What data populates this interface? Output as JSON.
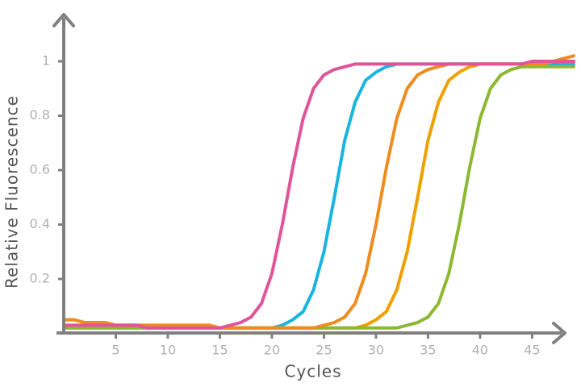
{
  "chart_data": {
    "type": "line",
    "xlabel": "Cycles",
    "ylabel": "Relative Fluorescence",
    "x": [
      0,
      1,
      2,
      3,
      4,
      5,
      6,
      7,
      8,
      9,
      10,
      11,
      12,
      13,
      14,
      15,
      16,
      17,
      18,
      19,
      20,
      21,
      22,
      23,
      24,
      25,
      26,
      27,
      28,
      29,
      30,
      31,
      32,
      33,
      34,
      35,
      36,
      37,
      38,
      39,
      40,
      41,
      42,
      43,
      44,
      45,
      46,
      47,
      48,
      49
    ],
    "xlim": [
      0,
      49
    ],
    "xticks": [
      5,
      10,
      15,
      20,
      25,
      30,
      35,
      40,
      45
    ],
    "ylim": [
      0,
      1.15
    ],
    "yticks": [
      0.2,
      0.4,
      0.6,
      0.8,
      1
    ],
    "grid": false,
    "series": [
      {
        "color": "#1ab4e0",
        "values": [
          0.02,
          0.02,
          0.02,
          0.02,
          0.02,
          0.02,
          0.02,
          0.02,
          0.02,
          0.02,
          0.02,
          0.02,
          0.02,
          0.02,
          0.02,
          0.02,
          0.02,
          0.02,
          0.02,
          0.02,
          0.02,
          0.03,
          0.05,
          0.08,
          0.16,
          0.3,
          0.5,
          0.71,
          0.85,
          0.93,
          0.96,
          0.98,
          0.99,
          0.99,
          0.99,
          0.99,
          0.99,
          0.99,
          0.99,
          0.99,
          0.99,
          0.99,
          0.99,
          0.99,
          0.99,
          0.99,
          0.99,
          0.99,
          0.99,
          0.99
        ]
      },
      {
        "color": "#f0a000",
        "values": [
          0.05,
          0.05,
          0.04,
          0.04,
          0.04,
          0.03,
          0.03,
          0.03,
          0.03,
          0.03,
          0.03,
          0.03,
          0.03,
          0.03,
          0.03,
          0.02,
          0.02,
          0.02,
          0.02,
          0.02,
          0.02,
          0.02,
          0.02,
          0.02,
          0.02,
          0.02,
          0.02,
          0.02,
          0.02,
          0.03,
          0.05,
          0.08,
          0.16,
          0.3,
          0.5,
          0.71,
          0.85,
          0.93,
          0.96,
          0.98,
          0.99,
          0.99,
          0.99,
          0.99,
          0.99,
          0.99,
          0.99,
          1,
          1,
          1
        ]
      },
      {
        "color": "#8cb832",
        "values": [
          0.02,
          0.02,
          0.02,
          0.02,
          0.02,
          0.02,
          0.02,
          0.02,
          0.02,
          0.02,
          0.02,
          0.02,
          0.02,
          0.02,
          0.02,
          0.02,
          0.02,
          0.02,
          0.02,
          0.02,
          0.02,
          0.02,
          0.02,
          0.02,
          0.02,
          0.02,
          0.02,
          0.02,
          0.02,
          0.02,
          0.02,
          0.02,
          0.02,
          0.03,
          0.04,
          0.06,
          0.11,
          0.22,
          0.4,
          0.61,
          0.79,
          0.9,
          0.95,
          0.97,
          0.98,
          0.98,
          0.98,
          0.98,
          0.98,
          0.98
        ]
      },
      {
        "color": "#ef8c1e",
        "values": [
          0.05,
          0.05,
          0.04,
          0.04,
          0.04,
          0.03,
          0.03,
          0.03,
          0.03,
          0.03,
          0.03,
          0.03,
          0.03,
          0.03,
          0.03,
          0.02,
          0.02,
          0.02,
          0.02,
          0.02,
          0.02,
          0.02,
          0.02,
          0.02,
          0.02,
          0.03,
          0.04,
          0.06,
          0.11,
          0.22,
          0.4,
          0.61,
          0.79,
          0.9,
          0.95,
          0.97,
          0.98,
          0.99,
          0.99,
          0.99,
          0.99,
          0.99,
          0.99,
          0.99,
          0.99,
          0.99,
          0.99,
          1,
          1.01,
          1.02
        ]
      },
      {
        "color": "#e0559a",
        "values": [
          0.03,
          0.03,
          0.03,
          0.03,
          0.03,
          0.03,
          0.03,
          0.03,
          0.02,
          0.02,
          0.02,
          0.02,
          0.02,
          0.02,
          0.02,
          0.02,
          0.03,
          0.04,
          0.06,
          0.11,
          0.22,
          0.4,
          0.61,
          0.79,
          0.9,
          0.95,
          0.97,
          0.98,
          0.99,
          0.99,
          0.99,
          0.99,
          0.99,
          0.99,
          0.99,
          0.99,
          0.99,
          0.99,
          0.99,
          0.99,
          0.99,
          0.99,
          0.99,
          0.99,
          0.99,
          1,
          1,
          1,
          1,
          1
        ]
      }
    ]
  }
}
